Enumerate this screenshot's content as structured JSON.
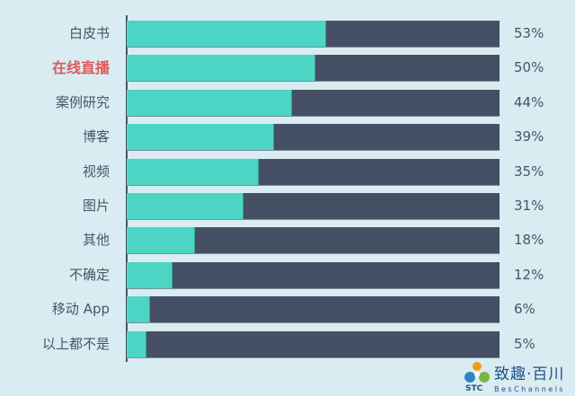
{
  "chart_data": {
    "type": "bar",
    "orientation": "horizontal",
    "title": "",
    "xlabel": "",
    "ylabel": "",
    "xlim": [
      0,
      100
    ],
    "categories": [
      "白皮书",
      "在线直播",
      "案例研究",
      "博客",
      "视频",
      "图片",
      "其他",
      "不确定",
      "移动 App",
      "以上都不是"
    ],
    "values": [
      53,
      50,
      44,
      39,
      35,
      31,
      18,
      12,
      6,
      5
    ],
    "value_labels": [
      "53%",
      "50%",
      "44%",
      "39%",
      "35%",
      "31%",
      "18%",
      "12%",
      "6%",
      "5%"
    ],
    "highlighted_category": "在线直播",
    "grid": false,
    "legend": null
  },
  "colors": {
    "background": "#d8ecf1",
    "fill": "#4cd5c5",
    "track": "#465064",
    "text": "#4a5468",
    "highlight": "#e05a5a",
    "logo": "#1f4f8a"
  },
  "logo": {
    "cn": "致趣·百川",
    "stc": "STC",
    "en": "BesChannels"
  }
}
